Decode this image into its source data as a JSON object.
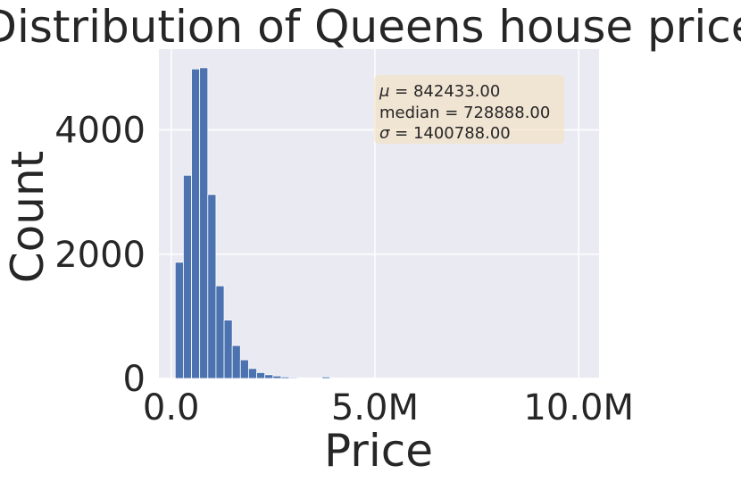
{
  "chart_data": {
    "type": "bar",
    "title": "Distribution of Queens house prices",
    "xlabel": "Price",
    "ylabel": "Count",
    "xlim": [
      -300000,
      10500000
    ],
    "ylim": [
      0,
      5300
    ],
    "xticks": [
      {
        "value": 0,
        "label": "0.0"
      },
      {
        "value": 5000000,
        "label": "5.0M"
      },
      {
        "value": 10000000,
        "label": "10.0M"
      }
    ],
    "yticks": [
      {
        "value": 0,
        "label": "0"
      },
      {
        "value": 2000,
        "label": "2000"
      },
      {
        "value": 4000,
        "label": "4000"
      }
    ],
    "grid": true,
    "bar_color": "#4c72b0",
    "plot_background": "#eaeaf2",
    "bin_width": 200000,
    "bins_start": 100000,
    "counts": [
      1870,
      3270,
      4980,
      5000,
      2960,
      1490,
      940,
      530,
      300,
      160,
      95,
      60,
      40,
      25,
      15,
      10,
      8,
      6,
      25,
      5,
      3,
      2,
      2,
      1,
      1,
      1,
      1,
      1,
      1,
      1,
      1,
      1,
      1,
      1,
      1,
      1,
      1,
      1,
      1,
      1,
      1,
      1,
      1,
      1,
      1,
      1,
      1,
      1,
      1,
      1
    ],
    "stats": {
      "mean": "842433.00",
      "median": "728888.00",
      "std": "1400788.00"
    }
  }
}
